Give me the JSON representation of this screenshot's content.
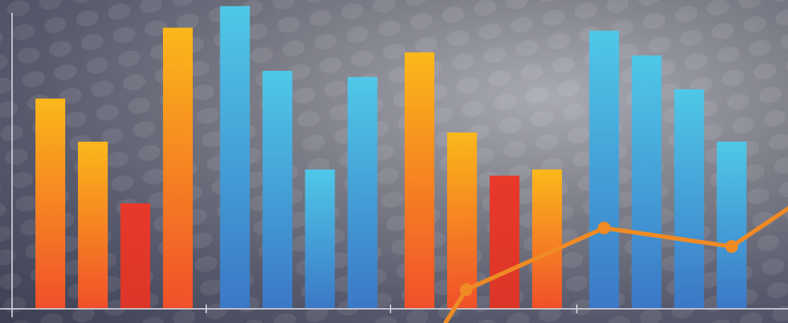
{
  "chart_data": {
    "type": "bar",
    "values": [
      68,
      54,
      34,
      91,
      98,
      77,
      45,
      75,
      83,
      57,
      43,
      45,
      90,
      82,
      71,
      54
    ],
    "colors": [
      "#fbb81b",
      "#fbb81b",
      "#e8392a",
      "#fbb81b",
      "#4fc8e8",
      "#4fc8e8",
      "#4fc8e8",
      "#4fc8e8",
      "#fbb81b",
      "#fbb81b",
      "#e8392a",
      "#fbb81b",
      "#4fc8e8",
      "#4fc8e8",
      "#4fc8e8",
      "#4fc8e8"
    ],
    "ylim": [
      0,
      100
    ],
    "line": {
      "color": "#f08a24",
      "x": [
        8.6,
        9.1,
        12,
        15,
        16.4
      ],
      "values": [
        -5,
        6,
        26,
        20,
        33
      ]
    }
  }
}
